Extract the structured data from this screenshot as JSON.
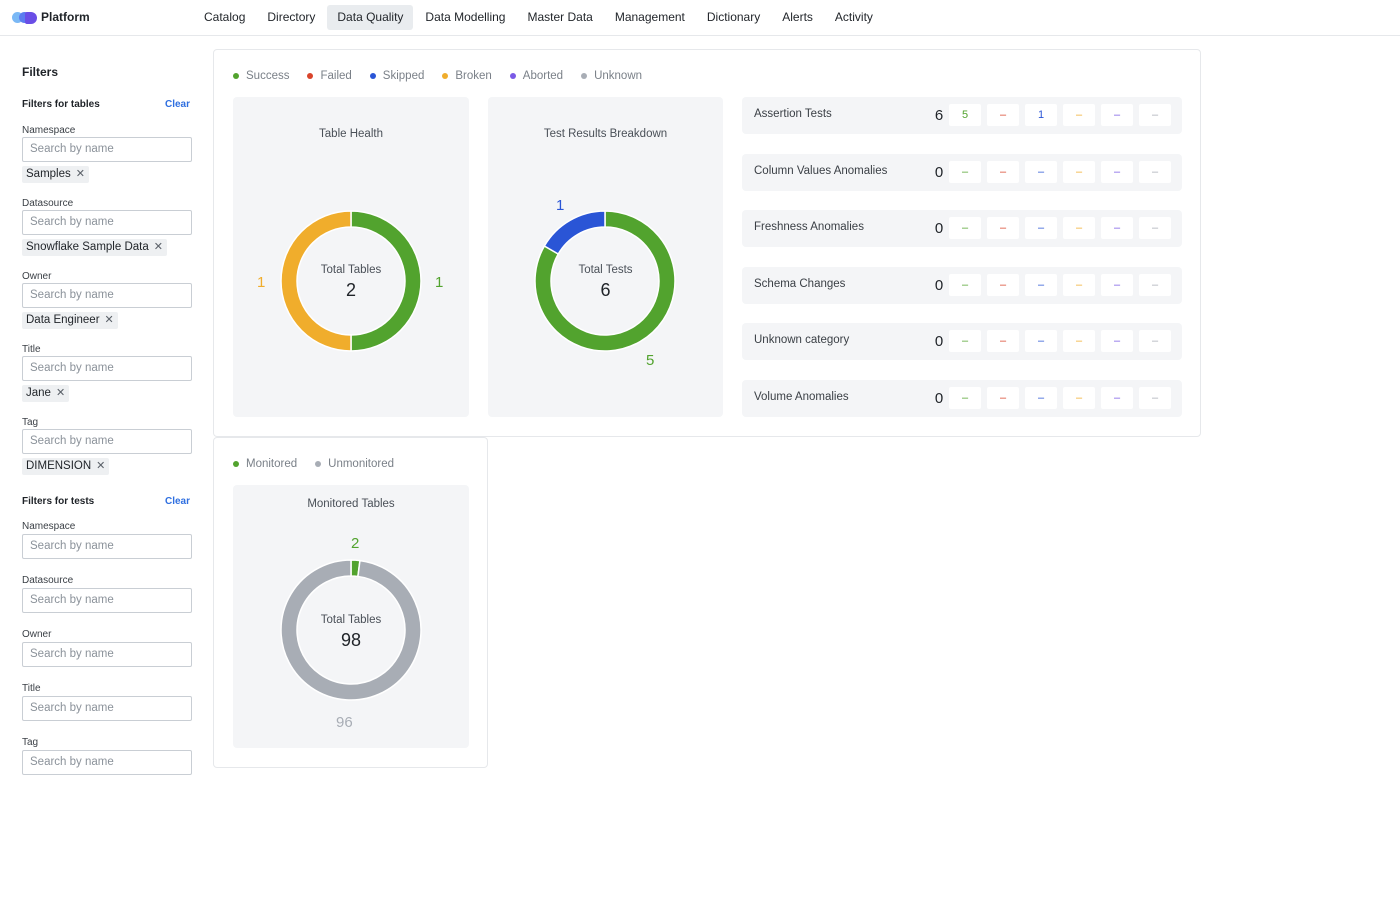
{
  "brand": {
    "name": "Platform"
  },
  "nav": {
    "items": [
      "Catalog",
      "Directory",
      "Data Quality",
      "Data Modelling",
      "Master Data",
      "Management",
      "Dictionary",
      "Alerts",
      "Activity"
    ],
    "active": "Data Quality"
  },
  "filters": {
    "title": "Filters",
    "tables": {
      "heading": "Filters for tables",
      "clear": "Clear",
      "fields": [
        {
          "label": "Namespace",
          "placeholder": "Search by name",
          "chip": "Samples"
        },
        {
          "label": "Datasource",
          "placeholder": "Search by name",
          "chip": "Snowflake Sample Data"
        },
        {
          "label": "Owner",
          "placeholder": "Search by name",
          "chip": "Data Engineer"
        },
        {
          "label": "Title",
          "placeholder": "Search by name",
          "chip": "Jane"
        },
        {
          "label": "Tag",
          "placeholder": "Search by name",
          "chip": "DIMENSION"
        }
      ]
    },
    "tests": {
      "heading": "Filters for tests",
      "clear": "Clear",
      "fields": [
        {
          "label": "Namespace",
          "placeholder": "Search by name"
        },
        {
          "label": "Datasource",
          "placeholder": "Search by name"
        },
        {
          "label": "Owner",
          "placeholder": "Search by name"
        },
        {
          "label": "Title",
          "placeholder": "Search by name"
        },
        {
          "label": "Tag",
          "placeholder": "Search by name"
        }
      ]
    }
  },
  "status_legend": [
    {
      "label": "Success",
      "color": "#52a32e"
    },
    {
      "label": "Failed",
      "color": "#d9442b"
    },
    {
      "label": "Skipped",
      "color": "#2a55d6"
    },
    {
      "label": "Broken",
      "color": "#f0ad2c"
    },
    {
      "label": "Aborted",
      "color": "#7a5ae6"
    },
    {
      "label": "Unknown",
      "color": "#a8adb5"
    }
  ],
  "table_health": {
    "title": "Table Health",
    "center_label": "Total Tables",
    "total": "2",
    "segments": [
      {
        "status": "Success",
        "value": 1,
        "color": "#52a32e"
      },
      {
        "status": "Broken",
        "value": 1,
        "color": "#f0ad2c"
      }
    ]
  },
  "test_results": {
    "title": "Test Results Breakdown",
    "center_label": "Total Tests",
    "total": "6",
    "segments": [
      {
        "status": "Success",
        "value": 5,
        "color": "#52a32e"
      },
      {
        "status": "Skipped",
        "value": 1,
        "color": "#2a55d6"
      }
    ]
  },
  "categories": [
    {
      "name": "Assertion Tests",
      "total": "6",
      "counts": [
        "5",
        "–",
        "1",
        "–",
        "–",
        "–"
      ]
    },
    {
      "name": "Column Values Anomalies",
      "total": "0",
      "counts": [
        "–",
        "–",
        "–",
        "–",
        "–",
        "–"
      ]
    },
    {
      "name": "Freshness Anomalies",
      "total": "0",
      "counts": [
        "–",
        "–",
        "–",
        "–",
        "–",
        "–"
      ]
    },
    {
      "name": "Schema Changes",
      "total": "0",
      "counts": [
        "–",
        "–",
        "–",
        "–",
        "–",
        "–"
      ]
    },
    {
      "name": "Unknown category",
      "total": "0",
      "counts": [
        "–",
        "–",
        "–",
        "–",
        "–",
        "–"
      ]
    },
    {
      "name": "Volume Anomalies",
      "total": "0",
      "counts": [
        "–",
        "–",
        "–",
        "–",
        "–",
        "–"
      ]
    }
  ],
  "monitor_legend": [
    {
      "label": "Monitored",
      "color": "#52a32e"
    },
    {
      "label": "Unmonitored",
      "color": "#a8adb5"
    }
  ],
  "monitored": {
    "title": "Monitored Tables",
    "center_label": "Total Tables",
    "total": "98",
    "segments": [
      {
        "status": "Monitored",
        "value": 2,
        "color": "#52a32e"
      },
      {
        "status": "Unmonitored",
        "value": 96,
        "color": "#a8adb5"
      }
    ]
  }
}
